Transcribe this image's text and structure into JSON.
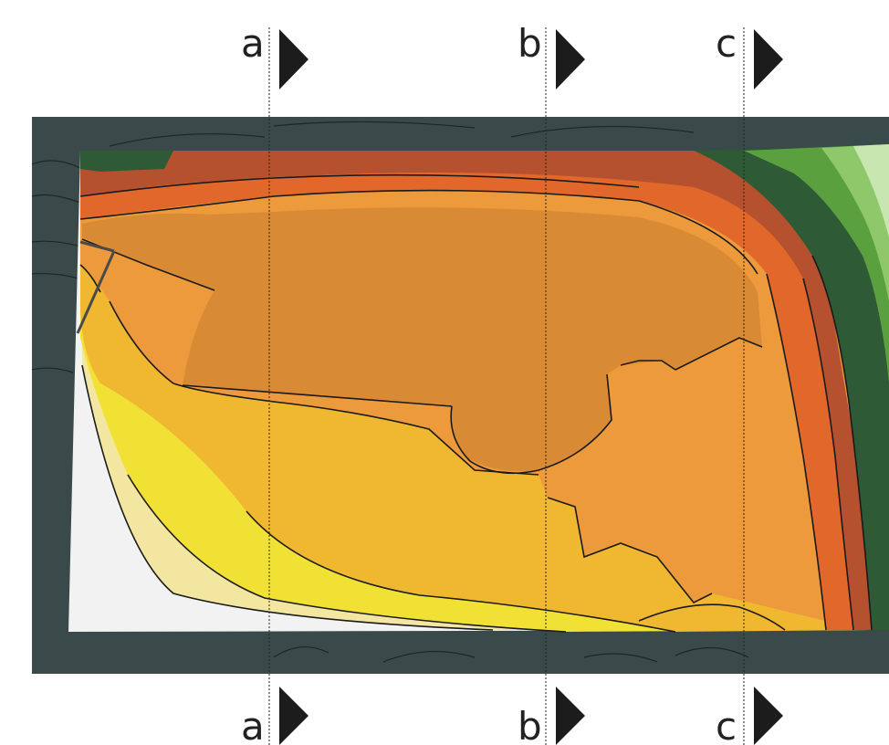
{
  "section_lines": [
    {
      "id": "a",
      "top_label": "a",
      "bottom_label": "a"
    },
    {
      "id": "b",
      "top_label": "b",
      "bottom_label": "b"
    },
    {
      "id": "c",
      "top_label": "c",
      "bottom_label": "c"
    }
  ],
  "colors": {
    "terrain_dark": "#3a4a4a",
    "contour_line": "#1a1a1a",
    "white_zone": "#f2f2f2",
    "pale_yellow": "#f3e6a0",
    "yellow": "#f2e135",
    "yellow_orange": "#f0b830",
    "light_orange": "#ec9a3c",
    "mid_orange": "#d98a35",
    "dark_orange": "#e2672a",
    "brown_red": "#b5512e",
    "dark_green": "#2e5a35",
    "mid_green": "#5aa03e",
    "light_green": "#8fc86a",
    "pale_green": "#c8e6b0",
    "arrow": "#1c1c1c"
  },
  "icons": [
    "section-arrow-icon"
  ]
}
